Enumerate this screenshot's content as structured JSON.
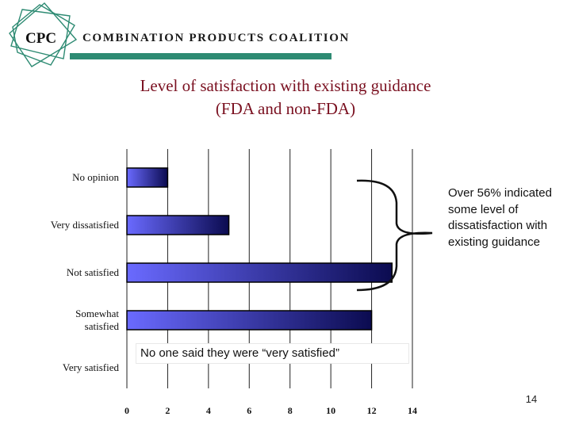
{
  "header": {
    "logo_text": "CPC",
    "brand_name": "COMBINATION PRODUCTS COALITION",
    "accent_color": "#2e8b73"
  },
  "title": {
    "line1": "Level of satisfaction with existing guidance",
    "line2": "(FDA and non-FDA)",
    "color": "#7a1020"
  },
  "chart_data": {
    "type": "bar",
    "orientation": "horizontal",
    "categories": [
      "No opinion",
      "Very dissatisfied",
      "Not satisfied",
      "Somewhat satisfied",
      "Very satisfied"
    ],
    "category_display": [
      [
        "No opinion"
      ],
      [
        "Very dissatisfied"
      ],
      [
        "Not satisfied"
      ],
      [
        "Somewhat",
        "satisfied"
      ],
      [
        "Very satisfied"
      ]
    ],
    "values": [
      2,
      5,
      13,
      12,
      0
    ],
    "xlim": [
      0,
      14
    ],
    "xticks": [
      0,
      2,
      4,
      6,
      8,
      10,
      12,
      14
    ],
    "xlabel": "",
    "ylabel": "",
    "grid": true,
    "bar_color_light": "#6a6aff",
    "bar_color_dark": "#0b0b50"
  },
  "annotations": {
    "callout": "Over 56% indicated some level of dissatisfaction with existing guidance",
    "note": "No one said they were “very satisfied”"
  },
  "footer": {
    "page_number": "14"
  }
}
